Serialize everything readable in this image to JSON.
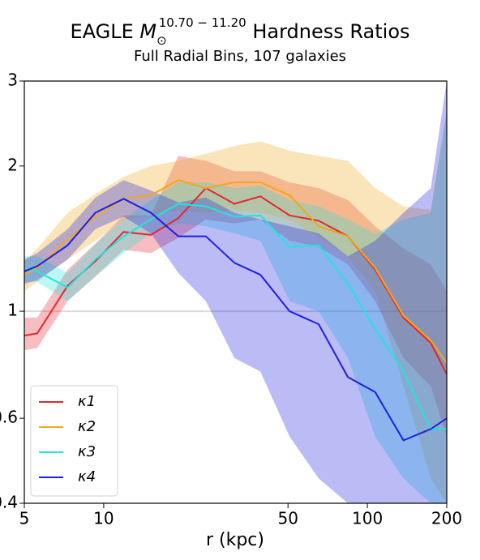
{
  "chart_data": {
    "type": "line",
    "title": {
      "prefix": "EAGLE ",
      "symbol": "M",
      "subscript": "⊙",
      "superscript": "10.70 − 11.20",
      "suffix": " Hardness Ratios"
    },
    "subtitle": "Full Radial Bins, 107 galaxies",
    "xlabel": "r (kpc)",
    "x": [
      5,
      5.6,
      7.3,
      9.3,
      11.9,
      15.1,
      19.2,
      24.4,
      31.3,
      39.3,
      50.7,
      65.4,
      84.4,
      107,
      137,
      174,
      200
    ],
    "series": [
      {
        "name": "κ1",
        "color": "#e6262e",
        "values": [
          0.89,
          0.9,
          1.13,
          1.27,
          1.46,
          1.44,
          1.56,
          1.8,
          1.67,
          1.73,
          1.58,
          1.54,
          1.43,
          1.22,
          0.97,
          0.86,
          0.74
        ],
        "lower": [
          0.83,
          0.84,
          1.05,
          1.18,
          1.34,
          1.32,
          1.42,
          1.55,
          1.52,
          1.55,
          1.4,
          1.36,
          1.25,
          1.05,
          0.8,
          0.7,
          0.55
        ],
        "upper": [
          0.97,
          0.97,
          1.22,
          1.38,
          1.58,
          1.58,
          2.1,
          2.05,
          1.95,
          1.95,
          1.85,
          1.8,
          1.7,
          1.5,
          1.35,
          1.25,
          1.1
        ]
      },
      {
        "name": "κ2",
        "color": "#f0a81c",
        "values": [
          1.19,
          1.23,
          1.41,
          1.57,
          1.71,
          1.74,
          1.87,
          1.8,
          1.85,
          1.85,
          1.74,
          1.5,
          1.43,
          1.23,
          0.98,
          0.87,
          0.78
        ],
        "lower": [
          1.1,
          1.15,
          1.28,
          1.4,
          1.55,
          1.58,
          1.62,
          1.6,
          1.62,
          1.6,
          1.55,
          1.42,
          1.3,
          1.1,
          0.7,
          0.45,
          0.4
        ],
        "upper": [
          1.27,
          1.35,
          1.6,
          1.75,
          1.9,
          2.0,
          2.05,
          2.12,
          2.2,
          2.25,
          2.15,
          2.1,
          2.05,
          1.8,
          1.65,
          1.62,
          2.6
        ]
      },
      {
        "name": "κ3",
        "color": "#22e3e0",
        "values": [
          1.23,
          1.21,
          1.12,
          1.28,
          1.43,
          1.55,
          1.67,
          1.65,
          1.57,
          1.58,
          1.36,
          1.37,
          1.14,
          0.92,
          0.75,
          0.57,
          0.57
        ],
        "lower": [
          1.15,
          1.15,
          1.05,
          1.18,
          1.32,
          1.45,
          1.52,
          1.5,
          1.45,
          1.4,
          1.05,
          1.0,
          0.8,
          0.55,
          0.45,
          0.4,
          0.4
        ],
        "upper": [
          1.3,
          1.3,
          1.2,
          1.38,
          1.55,
          1.7,
          1.85,
          1.85,
          1.8,
          1.82,
          1.7,
          1.65,
          1.55,
          1.45,
          1.55,
          1.6,
          2.6
        ]
      },
      {
        "name": "κ4",
        "color": "#1f1fe0",
        "values": [
          1.21,
          1.24,
          1.37,
          1.6,
          1.71,
          1.6,
          1.43,
          1.43,
          1.26,
          1.19,
          1.0,
          0.94,
          0.73,
          0.68,
          0.54,
          0.57,
          0.6
        ],
        "lower": [
          1.14,
          1.16,
          1.28,
          1.48,
          1.57,
          1.45,
          1.2,
          1.05,
          0.8,
          0.75,
          0.55,
          0.45,
          0.4,
          0.4,
          0.4,
          0.4,
          0.4
        ],
        "upper": [
          1.28,
          1.32,
          1.48,
          1.72,
          1.87,
          1.78,
          1.68,
          1.72,
          1.6,
          1.55,
          1.5,
          1.45,
          1.3,
          1.4,
          1.6,
          1.8,
          3.0
        ]
      }
    ],
    "band_opacity": 0.3,
    "xlim": [
      5,
      200
    ],
    "ylim": [
      0.4,
      3
    ],
    "xticks": [
      5,
      10,
      50,
      100,
      200
    ],
    "yticks": [
      {
        "value": 0.4,
        "label": "0.4"
      },
      {
        "value": 0.6,
        "label": "0.6"
      },
      1,
      2,
      3
    ],
    "xscale": "log",
    "yscale": "log",
    "hline": {
      "value": 1,
      "color": "#d9d9d9"
    },
    "legend": "lower left"
  }
}
